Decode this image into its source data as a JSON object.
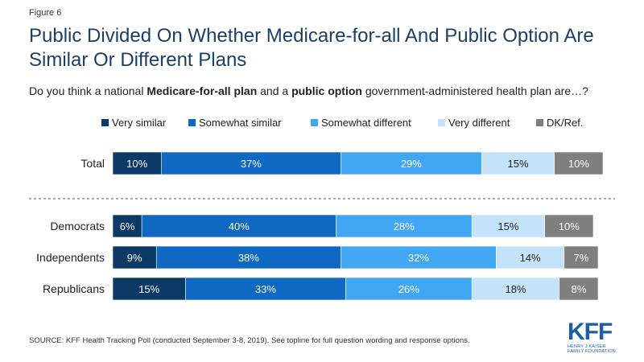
{
  "figure_label": "Figure 6",
  "title": "Public Divided On Whether Medicare-for-all And Public Option Are Similar Or Different Plans",
  "question": {
    "part1": "Do you think a national ",
    "bold1": "Medicare-for-all plan",
    "part2": " and a ",
    "bold2": "public option",
    "part3": " government-administered health plan are…?"
  },
  "source": "SOURCE: KFF Health Tracking Poll (conducted September 3-8, 2019). See topline for full question wording and response options.",
  "logo": {
    "main": "KFF",
    "line1": "HENRY J KAISER",
    "line2": "FAMILY FOUNDATION"
  },
  "chart_data": {
    "type": "bar",
    "orientation": "horizontal",
    "stacked": true,
    "categories": [
      "Total",
      "Democrats",
      "Independents",
      "Republicans"
    ],
    "series": [
      {
        "name": "Very similar",
        "color": "#0c3a66",
        "values": [
          10,
          6,
          9,
          15
        ],
        "labels": [
          "10%",
          "6%",
          "9%",
          "15%"
        ]
      },
      {
        "name": "Somewhat similar",
        "color": "#0f68c2",
        "values": [
          37,
          40,
          38,
          33
        ],
        "labels": [
          "37%",
          "40%",
          "38%",
          "33%"
        ]
      },
      {
        "name": "Somewhat different",
        "color": "#41a7f2",
        "values": [
          29,
          28,
          32,
          26
        ],
        "labels": [
          "29%",
          "28%",
          "32%",
          "26%"
        ]
      },
      {
        "name": "Very different",
        "color": "#c4e3fb",
        "values": [
          15,
          15,
          14,
          18
        ],
        "labels": [
          "15%",
          "15%",
          "14%",
          "18%"
        ]
      },
      {
        "name": "DK/Ref.",
        "color": "#7f7f7f",
        "values": [
          10,
          10,
          7,
          8
        ],
        "labels": [
          "10%",
          "10%",
          "7%",
          "8%"
        ]
      }
    ],
    "label_colors": [
      "#ffffff",
      "#ffffff",
      "#ffffff",
      "#222222",
      "#ffffff"
    ],
    "legend_position": "top",
    "separator_after_category": "Total",
    "grid": false
  }
}
